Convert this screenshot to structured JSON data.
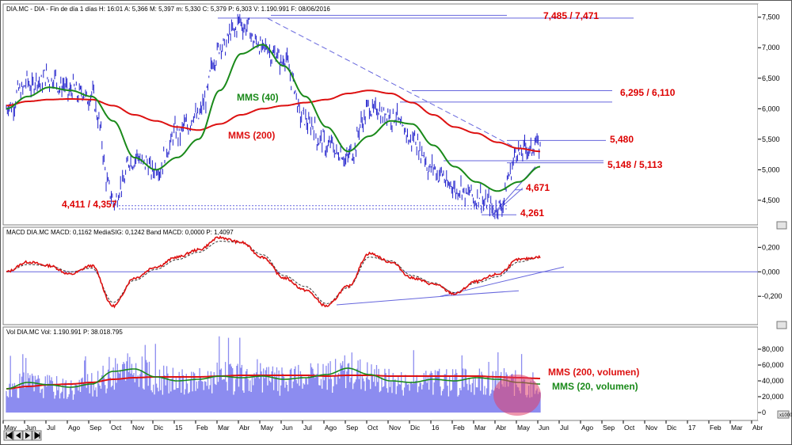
{
  "colors": {
    "price": "#2222cc",
    "mms40": "#1a8a1a",
    "mms200": "#dd1111",
    "macd": "#dd1111",
    "signal": "#333333",
    "volume": "#8c8cf0",
    "trend": "#6666dd",
    "level_text": "#dd0000",
    "frame": "#7f7f7f",
    "highlight": "#e0406a"
  },
  "headers": {
    "price": "DIA.MC - DIA - Fin de día 1 días H: 16:01 A: 5,366 M: 5,397 m: 5,330 C: 5,379 P: 6,303 V: 1.190.991 F: 08/06/2016",
    "macd": "MACD  DIA.MC  MACD: 0,1162 MediaSIG: 0,1242 Band  MACD: 0,0000  P: 1,4097",
    "volume": "Vol  DIA.MC  Vol: 1.190.991  P: 38.018.795"
  },
  "chart_data": [
    {
      "type": "line",
      "name": "price",
      "x": [
        "May",
        "Jun",
        "Jul",
        "Ago",
        "Sep",
        "Oct",
        "Nov",
        "Dic",
        "15",
        "Feb",
        "Mar",
        "Abr",
        "May",
        "Jun",
        "Jul",
        "Ago",
        "Sep",
        "Oct",
        "Nov",
        "Dic",
        "16",
        "Feb",
        "Mar",
        "Abr",
        "May",
        "Jun"
      ],
      "series": [
        {
          "values": [
            6.0,
            6.4,
            6.5,
            6.3,
            6.2,
            4.5,
            5.2,
            5.0,
            5.6,
            5.9,
            7.0,
            7.4,
            7.0,
            6.8,
            5.8,
            5.4,
            5.2,
            6.0,
            5.9,
            5.5,
            5.0,
            4.7,
            4.55,
            4.35,
            5.3,
            5.4
          ]
        },
        {
          "name": "MMS (40)",
          "values": [
            6.0,
            6.2,
            6.35,
            6.3,
            6.2,
            5.8,
            5.2,
            5.0,
            5.2,
            5.5,
            6.3,
            6.9,
            7.05,
            6.7,
            6.2,
            5.7,
            5.3,
            5.55,
            5.8,
            5.75,
            5.4,
            5.05,
            4.8,
            4.65,
            4.8,
            5.05
          ]
        },
        {
          "name": "MMS (200)",
          "values": [
            6.05,
            6.12,
            6.15,
            6.16,
            6.15,
            6.05,
            5.9,
            5.8,
            5.7,
            5.65,
            5.75,
            5.9,
            6.0,
            6.05,
            6.1,
            6.15,
            6.25,
            6.3,
            6.25,
            6.1,
            5.9,
            5.7,
            5.6,
            5.45,
            5.35,
            5.3
          ]
        }
      ],
      "yticks": [
        "7,500",
        "7,000",
        "6,500",
        "6,000",
        "5,500",
        "5,000",
        "4,500"
      ],
      "ylim": [
        4.2,
        7.6
      ],
      "annotations": [
        "7,485 / 7,471",
        "6,295 / 6,110",
        "5,480",
        "5,148 / 5,113",
        "4,671",
        "4,261",
        "4,411 / 4,357"
      ]
    },
    {
      "type": "line",
      "name": "macd",
      "series": [
        {
          "name": "MACD",
          "values": [
            0.0,
            0.08,
            0.05,
            -0.02,
            0.05,
            -0.28,
            -0.05,
            0.04,
            0.12,
            0.18,
            0.28,
            0.24,
            0.12,
            -0.05,
            -0.15,
            -0.28,
            -0.12,
            0.15,
            0.08,
            -0.05,
            -0.1,
            -0.18,
            -0.08,
            -0.02,
            0.1,
            0.12
          ]
        },
        {
          "name": "MediaSIG",
          "values": [
            0.0,
            0.06,
            0.05,
            0.0,
            0.03,
            -0.25,
            -0.07,
            0.02,
            0.1,
            0.16,
            0.25,
            0.24,
            0.14,
            -0.03,
            -0.12,
            -0.26,
            -0.13,
            0.12,
            0.09,
            -0.03,
            -0.09,
            -0.17,
            -0.09,
            -0.04,
            0.08,
            0.12
          ]
        }
      ],
      "yticks": [
        "0,200",
        "0,000",
        "-0,200"
      ],
      "ylim": [
        -0.38,
        0.28
      ]
    },
    {
      "type": "bar",
      "name": "volume",
      "series": [
        {
          "name": "MMS (200, volumen)",
          "values": [
            30,
            33,
            35,
            36,
            38,
            42,
            44,
            45,
            45,
            45,
            46,
            47,
            47,
            47,
            47,
            46,
            47,
            47,
            46,
            46,
            46,
            46,
            46,
            45,
            44,
            43
          ]
        },
        {
          "name": "MMS (20, volumen)",
          "values": [
            30,
            38,
            35,
            32,
            36,
            52,
            55,
            45,
            40,
            42,
            46,
            44,
            46,
            42,
            44,
            48,
            56,
            48,
            40,
            38,
            42,
            40,
            44,
            42,
            38,
            36
          ]
        }
      ],
      "yticks": [
        "80,000",
        "60,000",
        "40,000",
        "20,000",
        "0"
      ],
      "ylim": [
        -5,
        95
      ],
      "axis_unit": "x1000"
    }
  ],
  "price_labels": {
    "mms40": "MMS (40)",
    "mms200": "MMS (200)",
    "l7485": "7,485 / 7,471",
    "l6295": "6,295 / 6,110",
    "l5480": "5,480",
    "l5148": "5,148 / 5,113",
    "l4671": "4,671",
    "l4261": "4,261",
    "l4411": "4,411 / 4,357"
  },
  "vol_labels": {
    "mms200": "MMS (200, volumen)",
    "mms20": "MMS (20, volumen)"
  },
  "x_axis_months": [
    "May",
    "Jun",
    "Jul",
    "Ago",
    "Sep",
    "Oct",
    "Nov",
    "Dic",
    "15",
    "Feb",
    "Mar",
    "Abr",
    "May",
    "Jun",
    "Jul",
    "Ago",
    "Sep",
    "Oct",
    "Nov",
    "Dic",
    "16",
    "Feb",
    "Mar",
    "Abr",
    "May",
    "Jun",
    "Jul",
    "Ago",
    "Sep",
    "Oct",
    "Nov",
    "Dic",
    "17",
    "Feb",
    "Mar",
    "Abr"
  ],
  "nav_icons": [
    "first-icon",
    "prev-icon",
    "next-icon",
    "last-icon"
  ]
}
